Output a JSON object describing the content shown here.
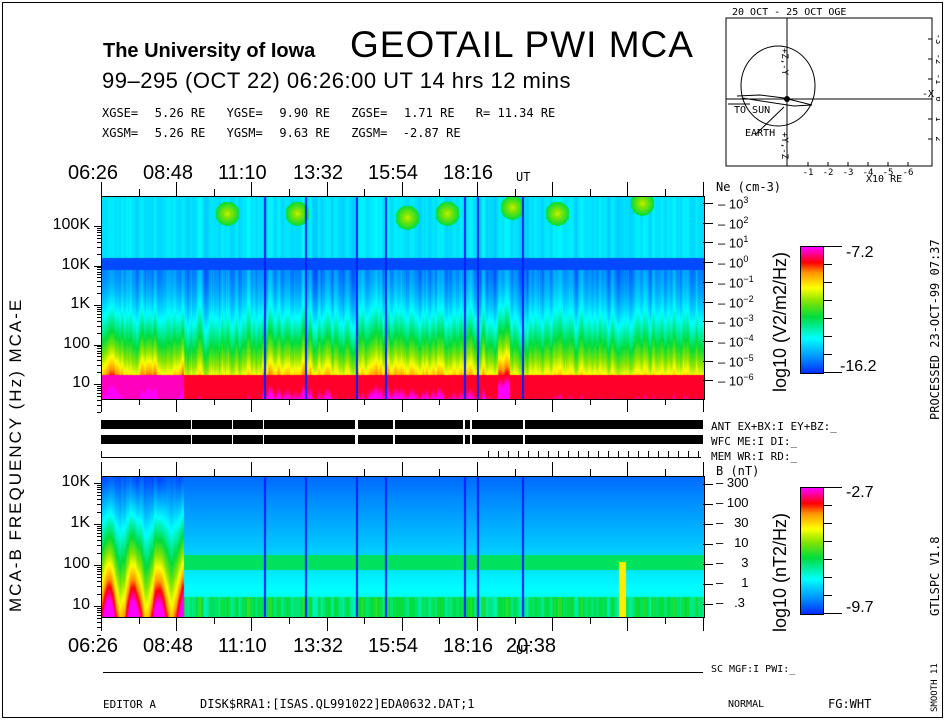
{
  "header": {
    "institution": "The University of Iowa",
    "title": "GEOTAIL  PWI  MCA",
    "date_line": "99–295 (OCT 22) 06:26:00 UT   14 hrs   12 mins",
    "coords_gse": [
      {
        "label": "XGSE=",
        "value": "5.26 RE"
      },
      {
        "label": "YGSE=",
        "value": "9.90 RE"
      },
      {
        "label": "ZGSE=",
        "value": "1.71 RE"
      },
      {
        "label": "R=",
        "value": "11.34 RE"
      }
    ],
    "coords_gsm": [
      {
        "label": "XGSM=",
        "value": "5.26 RE"
      },
      {
        "label": "YGSM=",
        "value": "9.63 RE"
      },
      {
        "label": "ZGSM=",
        "value": "-2.87 RE"
      }
    ]
  },
  "orbit": {
    "title": "20 OCT - 25 OCT  OGE",
    "to_sun": "TO SUN",
    "earth": "EARTH",
    "minus_x": "-X",
    "y_top": "+Z,-Y",
    "y_bottom": "+Y,-Z",
    "x_ticks": [
      "-1",
      "-2",
      "-3",
      "-4",
      "-5",
      "-6"
    ],
    "x_unit": "X10 RE",
    "y_ticks": [
      "-3",
      "-2",
      "-1",
      "0",
      "1",
      "2"
    ]
  },
  "chart_data": [
    {
      "type": "heatmap",
      "title": "MCA-E",
      "xlabel": "UT",
      "ylabel": "FREQUENCY (Hz)",
      "x_ticks": [
        "06:26",
        "08:48",
        "11:10",
        "13:32",
        "15:54",
        "18:16"
      ],
      "x_unit": "UT",
      "y_ticks": [
        "100K",
        "10K",
        "1K",
        "100",
        "10"
      ],
      "y_scale": "log",
      "ylim": [
        5,
        400000
      ],
      "right_axis_label": "Ne (cm-3)",
      "right_axis_ticks": [
        "10^3",
        "10^2",
        "10^1",
        "10^0",
        "10^-1",
        "10^-2",
        "10^-3",
        "10^-4",
        "10^-5",
        "10^-6"
      ],
      "colorbar": {
        "label": "log10 (V2/m2/Hz)",
        "max": -7.2,
        "min": -16.2
      }
    },
    {
      "type": "heatmap",
      "title": "MCA-B",
      "xlabel": "UT",
      "ylabel": "FREQUENCY (Hz)",
      "x_ticks": [
        "06:26",
        "08:48",
        "11:10",
        "13:32",
        "15:54",
        "18:16",
        "20:38"
      ],
      "x_unit": "UT",
      "y_ticks": [
        "10K",
        "1K",
        "100",
        "10"
      ],
      "y_scale": "log",
      "ylim": [
        5,
        12000
      ],
      "right_axis_label": "B (nT)",
      "right_axis_ticks": [
        "300",
        "100",
        "30",
        "10",
        "3",
        "1",
        ".3"
      ],
      "colorbar": {
        "label": "log10 (nT2/Hz)",
        "max": -2.7,
        "min": -9.7
      }
    }
  ],
  "status": {
    "ant": "ANT EX+BX:I  EY+BZ:_",
    "wfc": "WFC ME:I     DI:_",
    "mem": "MEM WR:I     RD:_",
    "sc": "SC MGF:I   PWI:_"
  },
  "side": {
    "left_label": "MCA-B   FREQUENCY (Hz)   MCA-E",
    "processed": "PROCESSED 23-OCT-99   07:37",
    "version": "GTLSPC   V1.8",
    "smooth": "SMOOTH 11"
  },
  "footer": {
    "editor": "EDITOR A",
    "file": "DISK$RRA1:[ISAS.QL991022]EDA0632.DAT;1",
    "mode": "NORMAL",
    "fg": "FG:WHT"
  }
}
